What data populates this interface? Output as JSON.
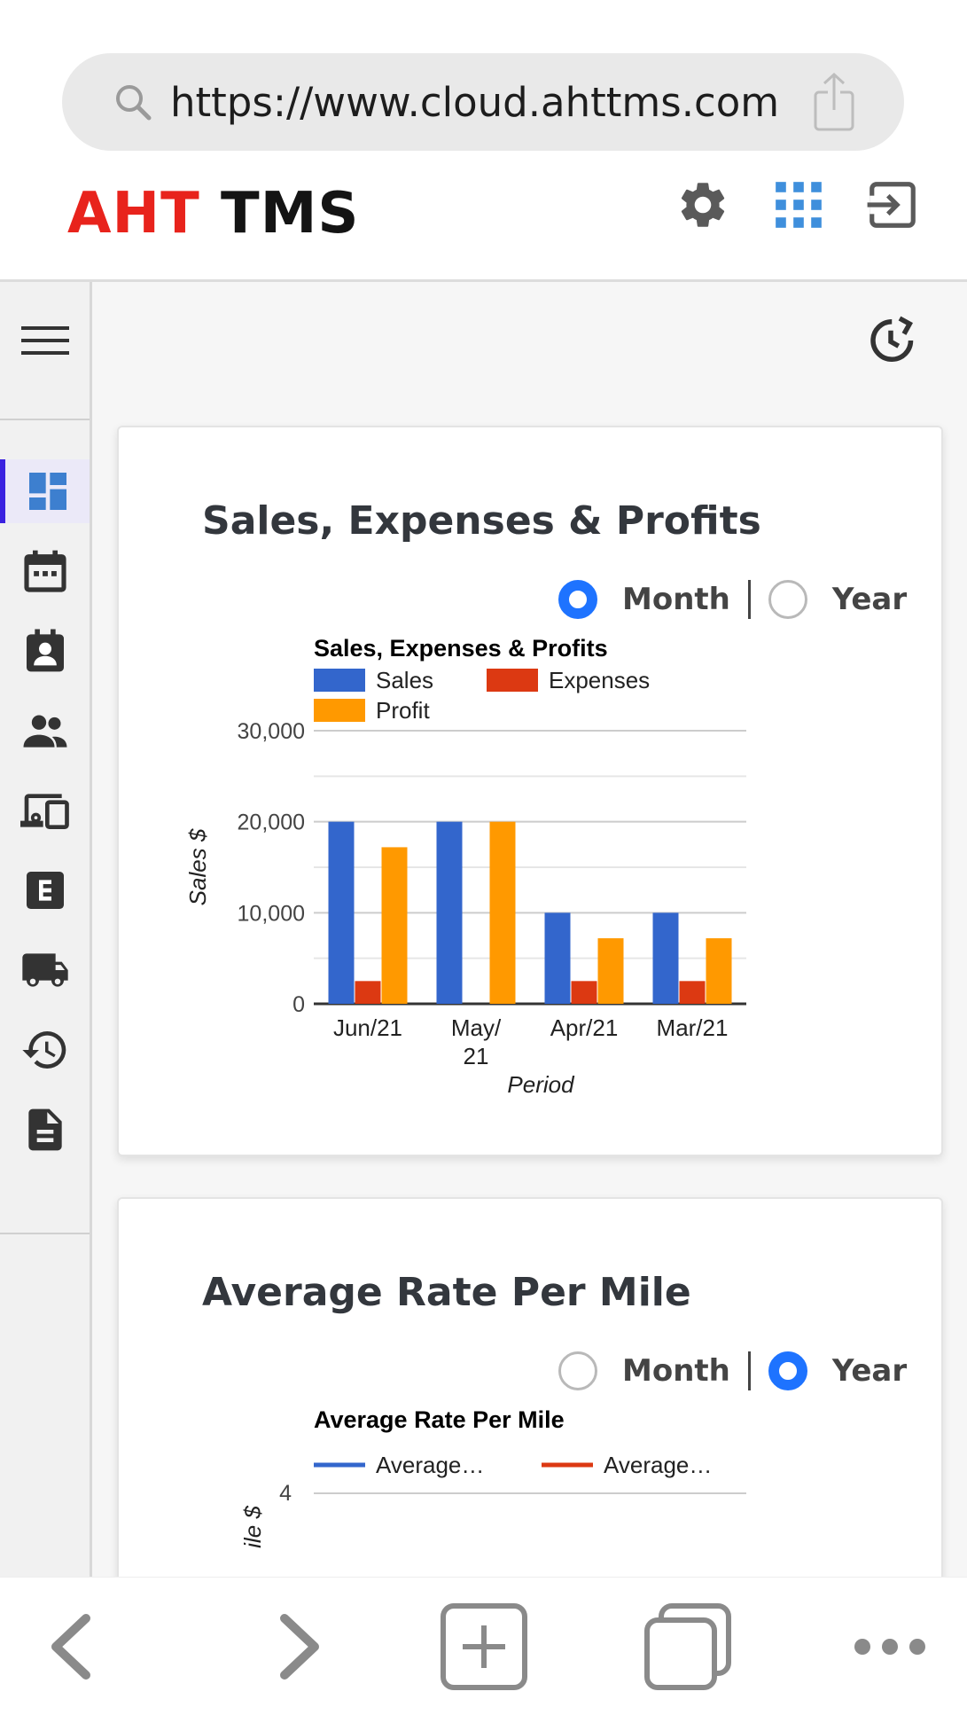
{
  "browser": {
    "url": "https://www.cloud.ahttms.com"
  },
  "header": {
    "logo_part1": "AHT",
    "logo_part2": "TMS",
    "icons": [
      "gear-icon",
      "apps-grid-icon",
      "logout-icon"
    ],
    "brand_red": "#e8231c"
  },
  "sidebar": {
    "items": [
      {
        "icon": "dashboard-icon",
        "active": true
      },
      {
        "icon": "calendar-icon",
        "active": false
      },
      {
        "icon": "contact-card-icon",
        "active": false
      },
      {
        "icon": "people-icon",
        "active": false
      },
      {
        "icon": "devices-icon",
        "active": false
      },
      {
        "icon": "letter-e-icon",
        "active": false
      },
      {
        "icon": "truck-icon",
        "active": false
      },
      {
        "icon": "history-icon",
        "active": false
      },
      {
        "icon": "document-icon",
        "active": false
      }
    ],
    "accent": "#3a21e0"
  },
  "cards": [
    {
      "title": "Sales, Expenses & Profits",
      "toggle": {
        "month_label": "Month",
        "year_label": "Year",
        "selected": "Month"
      }
    },
    {
      "title": "Average Rate Per Mile",
      "toggle": {
        "month_label": "Month",
        "year_label": "Year",
        "selected": "Year"
      }
    }
  ],
  "chart_data": [
    {
      "type": "bar",
      "title": "Sales, Expenses & Profits",
      "xlabel": "Period",
      "ylabel": "Sales $",
      "categories": [
        "Jun/21",
        "May/21",
        "Apr/21",
        "Mar/21"
      ],
      "series": [
        {
          "name": "Sales",
          "color": "#3366cc",
          "values": [
            20000,
            20000,
            10000,
            10000
          ]
        },
        {
          "name": "Expenses",
          "color": "#dc3912",
          "values": [
            2500,
            0,
            2500,
            2500
          ]
        },
        {
          "name": "Profit",
          "color": "#ff9900",
          "values": [
            17200,
            20000,
            7200,
            7200
          ]
        }
      ],
      "ylim": [
        0,
        30000
      ],
      "yticks": [
        "0",
        "10,000",
        "20,000",
        "30,000"
      ],
      "grid": true,
      "legend": "top"
    },
    {
      "type": "line",
      "title": "Average Rate Per Mile",
      "ylabel": "ile $",
      "series": [
        {
          "name": "Average…",
          "color": "#3366cc",
          "values": []
        },
        {
          "name": "Average…",
          "color": "#dc3912",
          "values": []
        }
      ],
      "yticks": [
        "4"
      ],
      "legend": "top"
    }
  ],
  "bottom_bar": {
    "buttons": [
      "back-arrow-icon",
      "forward-arrow-icon",
      "new-tab-icon",
      "tabs-icon",
      "more-icon"
    ]
  }
}
